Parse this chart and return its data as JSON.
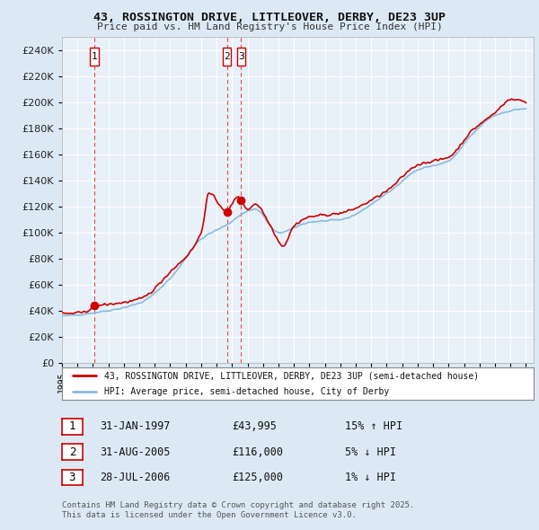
{
  "title": "43, ROSSINGTON DRIVE, LITTLEOVER, DERBY, DE23 3UP",
  "subtitle": "Price paid vs. HM Land Registry's House Price Index (HPI)",
  "sale_annotations": [
    {
      "num": "1",
      "date": "31-JAN-1997",
      "price": "£43,995",
      "note": "15% ↑ HPI"
    },
    {
      "num": "2",
      "date": "31-AUG-2005",
      "price": "£116,000",
      "note": "5% ↓ HPI"
    },
    {
      "num": "3",
      "date": "28-JUL-2006",
      "price": "£125,000",
      "note": "1% ↓ HPI"
    }
  ],
  "legend_line1": "43, ROSSINGTON DRIVE, LITTLEOVER, DERBY, DE23 3UP (semi-detached house)",
  "legend_line2": "HPI: Average price, semi-detached house, City of Derby",
  "footer": "Contains HM Land Registry data © Crown copyright and database right 2025.\nThis data is licensed under the Open Government Licence v3.0.",
  "sale_dates_decimal": [
    1997.083,
    2005.667,
    2006.583
  ],
  "sale_prices": [
    43995,
    116000,
    125000
  ],
  "ylim": [
    0,
    250000
  ],
  "yticks": [
    0,
    20000,
    40000,
    60000,
    80000,
    100000,
    120000,
    140000,
    160000,
    180000,
    200000,
    220000,
    240000
  ],
  "xlim": [
    1995,
    2025.5
  ],
  "background_color": "#dce9f5",
  "plot_bg_color": "#e8f0f8",
  "grid_color": "#ffffff",
  "red_line_color": "#cc0000",
  "blue_line_color": "#88bbdd",
  "sale_marker_color": "#cc0000",
  "dashed_line_color": "#ee3333",
  "box_edge_color": "#cc0000"
}
